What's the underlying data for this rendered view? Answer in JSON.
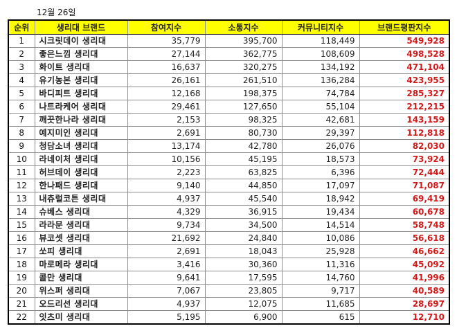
{
  "date_label": "12월 26일",
  "colors": {
    "header_bg": "#ffff00",
    "score_text": "#d11a1a"
  },
  "table": {
    "headers": [
      "순위",
      "생리대 브랜드",
      "참여지수",
      "소통지수",
      "커뮤니티지수",
      "브랜드평판지수"
    ],
    "rows": [
      {
        "rank": "1",
        "brand": "시크릿데이 생리대",
        "participation": "35,779",
        "communication": "395,700",
        "community": "118,449",
        "reputation": "549,928"
      },
      {
        "rank": "2",
        "brand": "좋은느낌 생리대",
        "participation": "27,144",
        "communication": "362,775",
        "community": "108,609",
        "reputation": "498,528"
      },
      {
        "rank": "3",
        "brand": "화이트 생리대",
        "participation": "16,637",
        "communication": "320,275",
        "community": "134,192",
        "reputation": "471,104"
      },
      {
        "rank": "4",
        "brand": "유기농본 생리대",
        "participation": "26,161",
        "communication": "261,510",
        "community": "136,284",
        "reputation": "423,955"
      },
      {
        "rank": "5",
        "brand": "바디피트 생리대",
        "participation": "12,168",
        "communication": "198,375",
        "community": "74,784",
        "reputation": "285,327"
      },
      {
        "rank": "6",
        "brand": "나트라케어 생리대",
        "participation": "29,461",
        "communication": "127,650",
        "community": "55,104",
        "reputation": "212,215"
      },
      {
        "rank": "7",
        "brand": "깨끗한나라 생리대",
        "participation": "2,153",
        "communication": "98,325",
        "community": "42,681",
        "reputation": "143,159"
      },
      {
        "rank": "8",
        "brand": "예지미인 생리대",
        "participation": "2,691",
        "communication": "80,730",
        "community": "29,397",
        "reputation": "112,818"
      },
      {
        "rank": "9",
        "brand": "청담소녀 생리대",
        "participation": "13,174",
        "communication": "42,780",
        "community": "26,076",
        "reputation": "82,030"
      },
      {
        "rank": "10",
        "brand": "라네이처 생리대",
        "participation": "10,156",
        "communication": "45,195",
        "community": "18,573",
        "reputation": "73,924"
      },
      {
        "rank": "11",
        "brand": "허브데이 생리대",
        "participation": "2,223",
        "communication": "63,825",
        "community": "6,396",
        "reputation": "72,444"
      },
      {
        "rank": "12",
        "brand": "한나패드 생리대",
        "participation": "9,140",
        "communication": "44,850",
        "community": "17,097",
        "reputation": "71,087"
      },
      {
        "rank": "13",
        "brand": "내츄럴코튼 생리대",
        "participation": "4,937",
        "communication": "45,540",
        "community": "18,942",
        "reputation": "69,419"
      },
      {
        "rank": "14",
        "brand": "슈베스 생리대",
        "participation": "4,329",
        "communication": "36,915",
        "community": "19,434",
        "reputation": "60,678"
      },
      {
        "rank": "15",
        "brand": "라라문 생리대",
        "participation": "9,734",
        "communication": "34,500",
        "community": "14,514",
        "reputation": "58,748"
      },
      {
        "rank": "16",
        "brand": "뷰코셋 생리대",
        "participation": "21,692",
        "communication": "24,840",
        "community": "10,086",
        "reputation": "56,618"
      },
      {
        "rank": "17",
        "brand": "쏘피 생리대",
        "participation": "2,691",
        "communication": "18,043",
        "community": "25,928",
        "reputation": "46,662"
      },
      {
        "rank": "18",
        "brand": "마로메라 생리대",
        "participation": "3,416",
        "communication": "30,360",
        "community": "11,316",
        "reputation": "45,092"
      },
      {
        "rank": "19",
        "brand": "콜만 생리대",
        "participation": "9,641",
        "communication": "17,595",
        "community": "14,760",
        "reputation": "41,996"
      },
      {
        "rank": "20",
        "brand": "위스퍼 생리대",
        "participation": "7,067",
        "communication": "23,805",
        "community": "9,717",
        "reputation": "40,589"
      },
      {
        "rank": "21",
        "brand": "오드리선 생리대",
        "participation": "4,937",
        "communication": "12,075",
        "community": "11,685",
        "reputation": "28,697"
      },
      {
        "rank": "22",
        "brand": "잇츠미 생리대",
        "participation": "5,195",
        "communication": "6,900",
        "community": "615",
        "reputation": "12,710"
      }
    ]
  }
}
